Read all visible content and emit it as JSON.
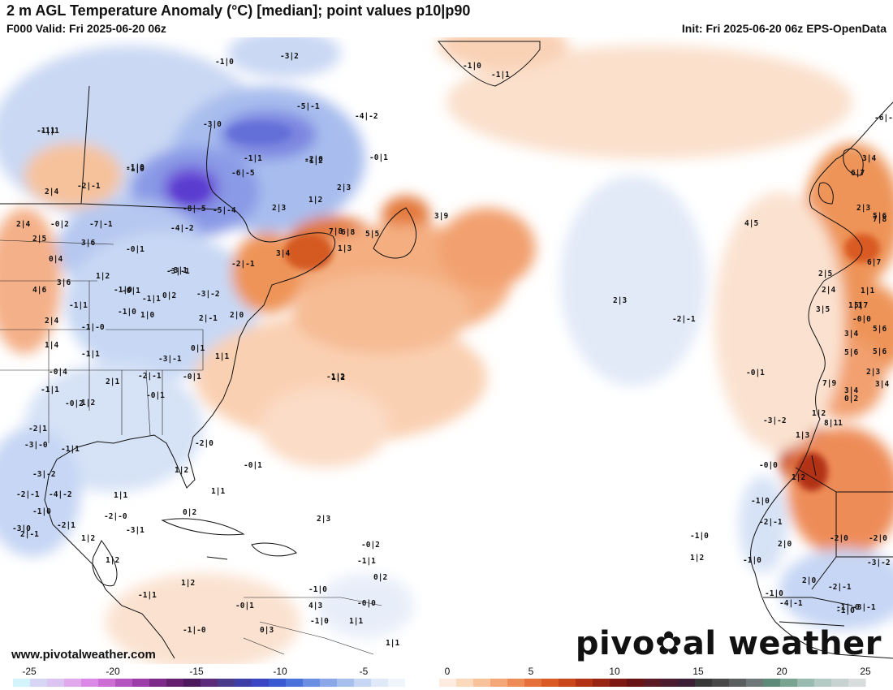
{
  "header": {
    "title": "2 m AGL Temperature Anomaly (°C) [median]; point values p10|p90",
    "valid": "F000 Valid: Fri 2025-06-20 06z",
    "init": "Init: Fri 2025-06-20 06z EPS-OpenData"
  },
  "footer": {
    "website": "www.pivotalweather.com",
    "brand_left": "pivo",
    "brand_right": "al weather",
    "brand_gear": "✿"
  },
  "colorbar": {
    "ticks": [
      "-25",
      "-20",
      "-15",
      "-10",
      "-5",
      "0",
      "5",
      "10",
      "15",
      "20",
      "25"
    ],
    "colors": [
      "#d2f4fa",
      "#d6d6f4",
      "#dcc4f2",
      "#e2a8ee",
      "#dc88e6",
      "#cc6ed4",
      "#b455bf",
      "#9b3ea8",
      "#7e2a8a",
      "#64206e",
      "#4c1a5c",
      "#5a2c7a",
      "#4a3a8a",
      "#3e3ea8",
      "#3a46c4",
      "#3a5ad2",
      "#4a72da",
      "#6a8ee2",
      "#8aa8e8",
      "#a8c0ee",
      "#c6d6f4",
      "#dfe9f8",
      "#f0f5fc",
      "#ffffff",
      "#ffffff",
      "#fdecdf",
      "#fbd9bd",
      "#f8c39a",
      "#f4a87a",
      "#ee8c58",
      "#e6703a",
      "#d95a22",
      "#c8461a",
      "#b23216",
      "#982414",
      "#7e1a14",
      "#681414",
      "#5a1a24",
      "#4a1c2e",
      "#3c1e36",
      "#383838",
      "#484848",
      "#5a5e5e",
      "#6e7878",
      "#5e8a7a",
      "#7aa492",
      "#9abcb0",
      "#b4cac4",
      "#c8d2d0",
      "#d8dcdc"
    ]
  },
  "point_values": [
    {
      "t": "-1|1"
    },
    {
      "t": "-1|0"
    },
    {
      "t": "-3|2"
    },
    {
      "t": "-1|0"
    },
    {
      "t": "-1|1"
    },
    {
      "t": "-5|-1"
    },
    {
      "t": "-4|-2"
    },
    {
      "t": "-1|0"
    },
    {
      "t": "-3|0"
    },
    {
      "t": "-1|1"
    },
    {
      "t": "-1|2"
    },
    {
      "t": "-2|0"
    },
    {
      "t": "-0|1"
    },
    {
      "t": "-1|1"
    },
    {
      "t": "-1|0"
    },
    {
      "t": "-6|-5"
    },
    {
      "t": "2|4"
    },
    {
      "t": "-2|-1"
    },
    {
      "t": "-8|-5"
    },
    {
      "t": "-5|-4"
    },
    {
      "t": "2|3"
    },
    {
      "t": "2|4"
    },
    {
      "t": "-0|2"
    },
    {
      "t": "-7|-1"
    },
    {
      "t": "-4|-2"
    },
    {
      "t": "1|2"
    },
    {
      "t": "2|3"
    },
    {
      "t": "2|5"
    },
    {
      "t": "3|6"
    },
    {
      "t": "-0|1"
    },
    {
      "t": "-3|-1"
    },
    {
      "t": "3|4"
    },
    {
      "t": "7|8"
    },
    {
      "t": "6|8"
    },
    {
      "t": "3|9"
    },
    {
      "t": "0|4"
    },
    {
      "t": "-3|1"
    },
    {
      "t": "-2|-1"
    },
    {
      "t": "5|5"
    },
    {
      "t": "1|3"
    },
    {
      "t": "1|2"
    },
    {
      "t": "-0|1"
    },
    {
      "t": "4|6"
    },
    {
      "t": "3|6"
    },
    {
      "t": "-1|0"
    },
    {
      "t": "-3|-2"
    },
    {
      "t": "0|2"
    },
    {
      "t": "-1|1"
    },
    {
      "t": "-1|1"
    },
    {
      "t": "2|4"
    },
    {
      "t": "-1|-0"
    },
    {
      "t": "-1|0"
    },
    {
      "t": "1|0"
    },
    {
      "t": "2|-1"
    },
    {
      "t": "1|4"
    },
    {
      "t": "-1|1"
    },
    {
      "t": "2|0"
    },
    {
      "t": "0|1"
    },
    {
      "t": "-3|-1"
    },
    {
      "t": "1|1"
    },
    {
      "t": "-0|4"
    },
    {
      "t": "2|1"
    },
    {
      "t": "-2|-1"
    },
    {
      "t": "-0|1"
    },
    {
      "t": "-1|2"
    },
    {
      "t": "-1|1"
    },
    {
      "t": "-0|1"
    },
    {
      "t": "-0|2"
    },
    {
      "t": "1|2"
    },
    {
      "t": "-2|1"
    },
    {
      "t": "-3|-0"
    },
    {
      "t": "-1|1"
    },
    {
      "t": "-3|-2"
    },
    {
      "t": "-2|0"
    },
    {
      "t": "1|2"
    },
    {
      "t": "-2|-1"
    },
    {
      "t": "-4|-2"
    },
    {
      "t": "-0|1"
    },
    {
      "t": "1|1"
    },
    {
      "t": "-1|0"
    },
    {
      "t": "0|2"
    },
    {
      "t": "1|1"
    },
    {
      "t": "2|-1"
    },
    {
      "t": "2|3"
    },
    {
      "t": "-2|1"
    },
    {
      "t": "-2|-0"
    },
    {
      "t": "1|2"
    },
    {
      "t": "-3|1"
    },
    {
      "t": "1|2"
    },
    {
      "t": "-0|2"
    },
    {
      "t": "-1|1"
    },
    {
      "t": "1|2"
    },
    {
      "t": "-1|1"
    },
    {
      "t": "0|2"
    },
    {
      "t": "-1|0"
    },
    {
      "t": "-0|1"
    },
    {
      "t": "0|3"
    },
    {
      "t": "4|3"
    },
    {
      "t": "-1|0"
    },
    {
      "t": "1|1"
    },
    {
      "t": "-0|0"
    },
    {
      "t": "1|1"
    },
    {
      "t": "-1|-0"
    },
    {
      "t": "1|2"
    },
    {
      "t": "2|3"
    },
    {
      "t": "-2|-1"
    },
    {
      "t": "-0|1"
    },
    {
      "t": "-6|-5"
    },
    {
      "t": "3|4"
    },
    {
      "t": "5|6"
    },
    {
      "t": "6|7"
    },
    {
      "t": "4|5"
    },
    {
      "t": "2|3"
    },
    {
      "t": "7|8"
    },
    {
      "t": "6|7"
    },
    {
      "t": "2|5"
    },
    {
      "t": "1|1"
    },
    {
      "t": "2|4"
    },
    {
      "t": "1|1"
    },
    {
      "t": "5|7"
    },
    {
      "t": "3|5"
    },
    {
      "t": "-0|0"
    },
    {
      "t": "5|6"
    },
    {
      "t": "3|4"
    },
    {
      "t": "5|6"
    },
    {
      "t": "5|6"
    },
    {
      "t": "2|3"
    },
    {
      "t": "3|4"
    },
    {
      "t": "7|9"
    },
    {
      "t": "3|4"
    },
    {
      "t": "0|2"
    },
    {
      "t": "1|2"
    },
    {
      "t": "8|11"
    },
    {
      "t": "-3|-2"
    },
    {
      "t": "1|3"
    },
    {
      "t": "-0|0"
    },
    {
      "t": "1|2"
    },
    {
      "t": "-1|0"
    },
    {
      "t": "-2|-1"
    },
    {
      "t": "-2|0"
    },
    {
      "t": "-2|0"
    },
    {
      "t": "-1|0"
    },
    {
      "t": "2|0"
    },
    {
      "t": "-3|-2"
    },
    {
      "t": "2|0"
    },
    {
      "t": "-4|-1"
    },
    {
      "t": "-3|-1"
    },
    {
      "t": "-2|-1"
    },
    {
      "t": "-1|0"
    },
    {
      "t": "-1|0"
    },
    {
      "t": "1|2"
    },
    {
      "t": "-1|-0"
    },
    {
      "t": "-1|0"
    },
    {
      "t": "-3|0"
    }
  ]
}
